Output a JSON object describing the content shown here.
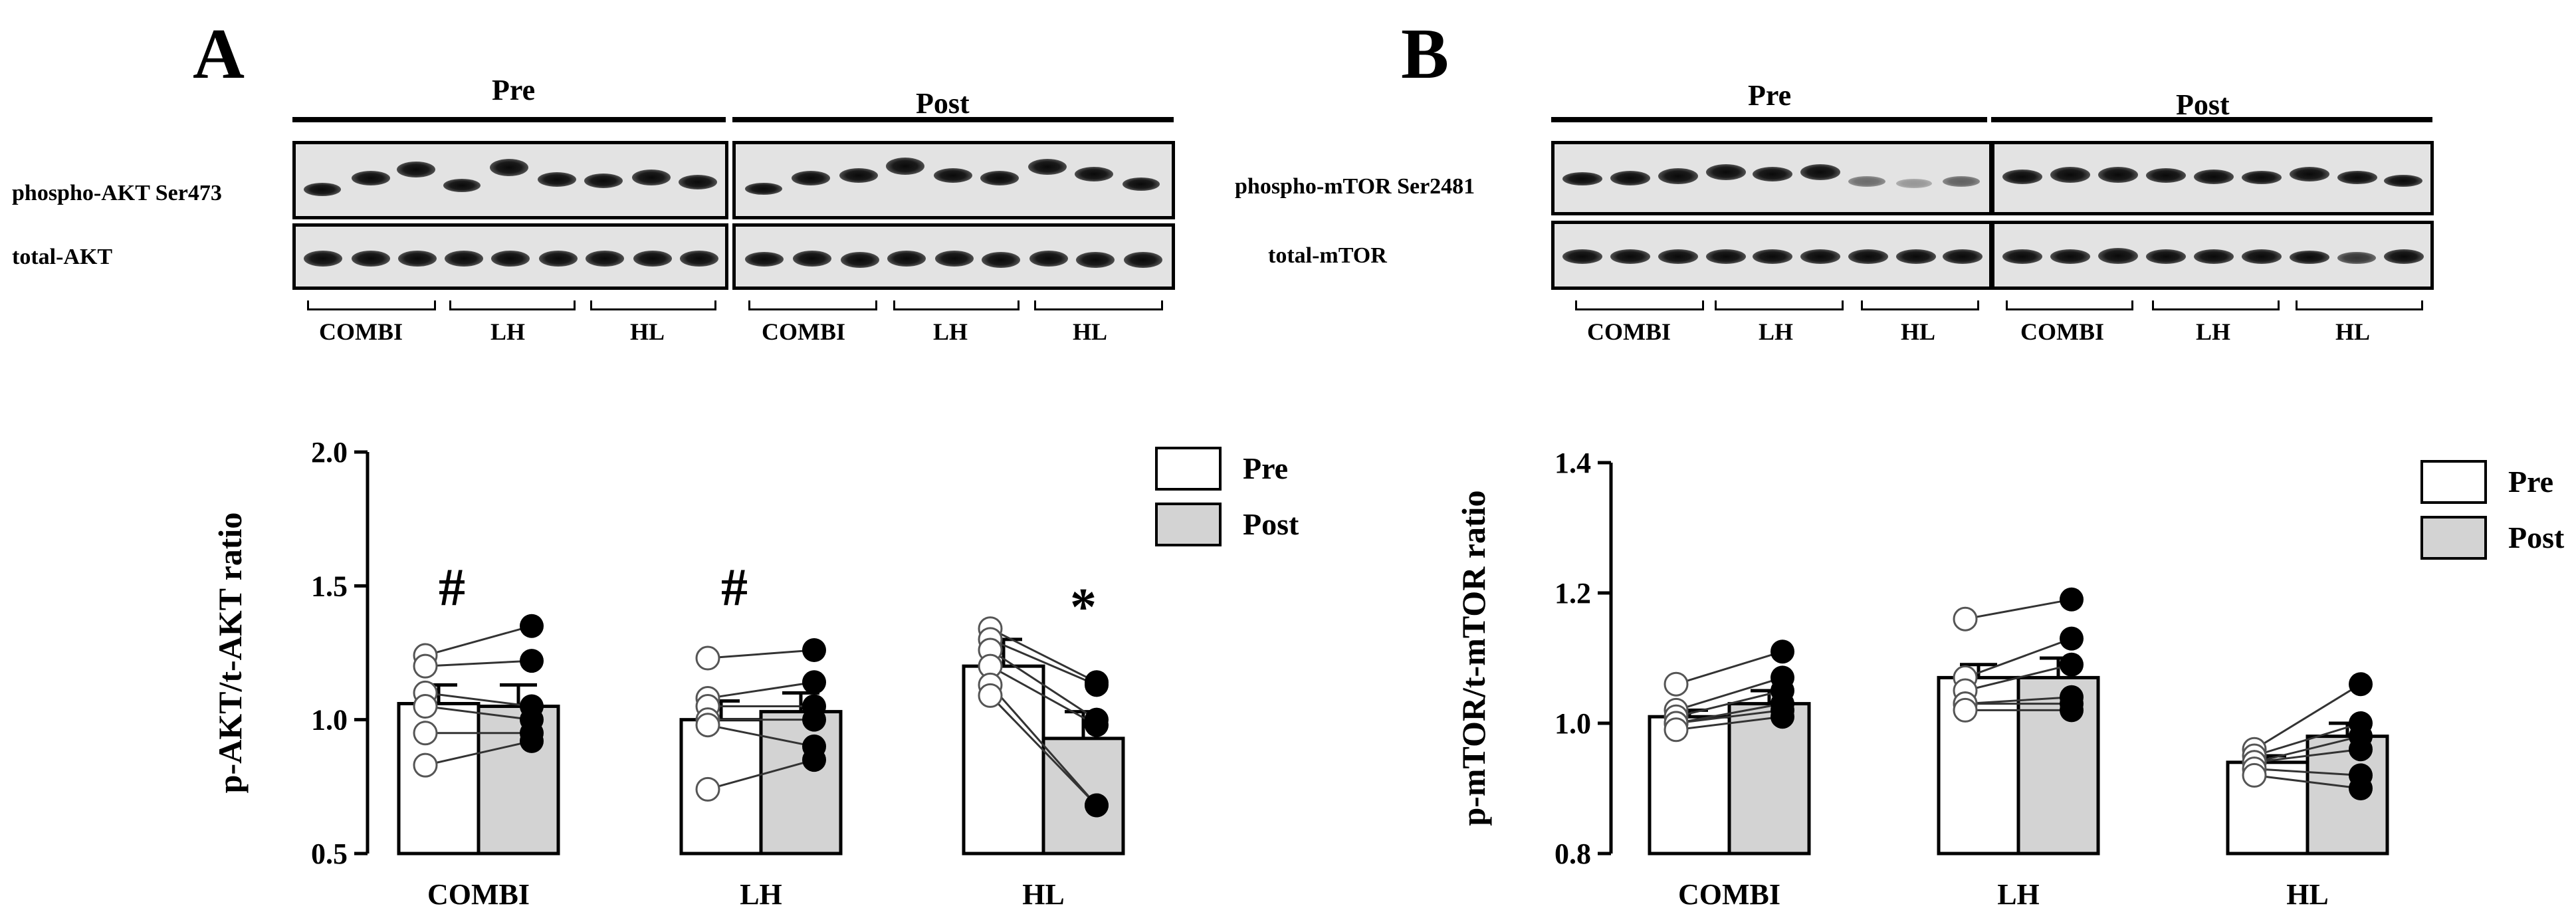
{
  "panels": [
    {
      "letter": "A",
      "phases": [
        "Pre",
        "Post"
      ],
      "blot_labels": [
        "phospho-AKT Ser473",
        "total-AKT"
      ],
      "lane_groups": [
        "COMBI",
        "LH",
        "HL",
        "COMBI",
        "LH",
        "HL"
      ],
      "chart_data": {
        "type": "bar",
        "categories": [
          "COMBI",
          "LH",
          "HL"
        ],
        "ylabel": "p-AKT/t-AKT ratio",
        "xlabel": "",
        "ylim": [
          0.5,
          2.0
        ],
        "yticks": [
          "0.5",
          "1.0",
          "1.5",
          "2.0"
        ],
        "legend": [
          "Pre",
          "Post"
        ],
        "legend_position": "top-right",
        "series": [
          {
            "name": "Pre",
            "fill": "#ffffff",
            "values": [
              1.06,
              1.0,
              1.2
            ],
            "errors": [
              0.07,
              0.07,
              0.1
            ],
            "points": [
              [
                1.24,
                1.2,
                1.1,
                1.05,
                0.95,
                0.83
              ],
              [
                1.23,
                1.08,
                1.05,
                1.0,
                0.98,
                0.74
              ],
              [
                1.34,
                1.3,
                1.26,
                1.2,
                1.13,
                1.09
              ]
            ]
          },
          {
            "name": "Post",
            "fill": "#d3d3d3",
            "values": [
              1.05,
              1.03,
              0.93
            ],
            "errors": [
              0.08,
              0.07,
              0.1
            ],
            "points": [
              [
                1.35,
                1.22,
                1.05,
                1.0,
                0.95,
                0.92
              ],
              [
                1.26,
                1.14,
                1.05,
                1.0,
                0.9,
                0.85
              ],
              [
                1.14,
                1.13,
                1.0,
                0.98,
                0.68,
                0.68
              ]
            ]
          }
        ],
        "annotations": [
          {
            "category": "COMBI",
            "text": "#"
          },
          {
            "category": "LH",
            "text": "#"
          },
          {
            "category": "HL",
            "text": "*"
          }
        ]
      }
    },
    {
      "letter": "B",
      "phases": [
        "Pre",
        "Post"
      ],
      "blot_labels": [
        "phospho-mTOR Ser2481",
        "total-mTOR"
      ],
      "lane_groups": [
        "COMBI",
        "LH",
        "HL",
        "COMBI",
        "LH",
        "HL"
      ],
      "chart_data": {
        "type": "bar",
        "categories": [
          "COMBI",
          "LH",
          "HL"
        ],
        "ylabel": "p-mTOR/t-mTOR ratio",
        "xlabel": "",
        "ylim": [
          0.8,
          1.4
        ],
        "yticks": [
          "0.8",
          "1.0",
          "1.2",
          "1.4"
        ],
        "legend": [
          "Pre",
          "Post"
        ],
        "legend_position": "top-right",
        "series": [
          {
            "name": "Pre",
            "fill": "#ffffff",
            "values": [
              1.01,
              1.07,
              0.94
            ],
            "errors": [
              0.01,
              0.02,
              0.01
            ],
            "points": [
              [
                1.06,
                1.02,
                1.01,
                1.0,
                1.0,
                0.99
              ],
              [
                1.16,
                1.07,
                1.05,
                1.03,
                1.03,
                1.02
              ],
              [
                0.96,
                0.95,
                0.94,
                0.94,
                0.93,
                0.92
              ]
            ]
          },
          {
            "name": "Post",
            "fill": "#d3d3d3",
            "values": [
              1.03,
              1.07,
              0.98
            ],
            "errors": [
              0.02,
              0.03,
              0.02
            ],
            "points": [
              [
                1.11,
                1.07,
                1.05,
                1.03,
                1.02,
                1.01
              ],
              [
                1.19,
                1.13,
                1.09,
                1.04,
                1.03,
                1.02
              ],
              [
                1.06,
                1.0,
                0.98,
                0.96,
                0.92,
                0.9
              ]
            ]
          }
        ],
        "annotations": []
      }
    }
  ]
}
